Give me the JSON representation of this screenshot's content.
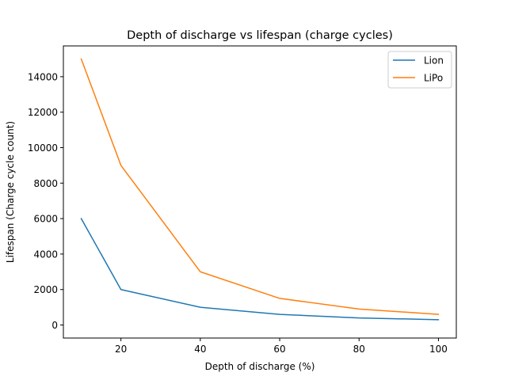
{
  "chart_data": {
    "type": "line",
    "title": "Depth of discharge vs lifespan (charge cycles)",
    "xlabel": "Depth of discharge (%)",
    "ylabel": "Lifespan (Charge cycle count)",
    "x": [
      10,
      20,
      40,
      60,
      80,
      100
    ],
    "xlim": [
      5.5,
      104.5
    ],
    "ylim": [
      -735,
      15735
    ],
    "xticks": [
      20,
      40,
      60,
      80,
      100
    ],
    "xtick_labels": [
      "20",
      "40",
      "60",
      "80",
      "100"
    ],
    "yticks": [
      0,
      2000,
      4000,
      6000,
      8000,
      10000,
      12000,
      14000
    ],
    "ytick_labels": [
      "0",
      "2000",
      "4000",
      "6000",
      "8000",
      "10000",
      "12000",
      "14000"
    ],
    "grid": false,
    "legend": "top-right",
    "series": [
      {
        "name": "Lion",
        "color": "#1f77b4",
        "values": [
          6000,
          2000,
          1000,
          600,
          400,
          300
        ]
      },
      {
        "name": "LiPo",
        "color": "#ff7f0e",
        "values": [
          15000,
          9000,
          3000,
          1500,
          900,
          600
        ]
      }
    ]
  }
}
